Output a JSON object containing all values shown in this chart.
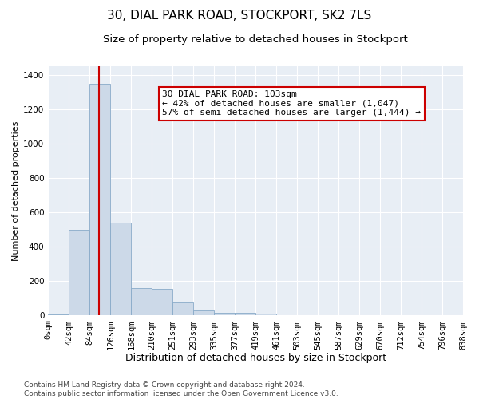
{
  "title1": "30, DIAL PARK ROAD, STOCKPORT, SK2 7LS",
  "title2": "Size of property relative to detached houses in Stockport",
  "xlabel": "Distribution of detached houses by size in Stockport",
  "ylabel": "Number of detached properties",
  "bin_labels": [
    "0sqm",
    "42sqm",
    "84sqm",
    "126sqm",
    "168sqm",
    "210sqm",
    "251sqm",
    "293sqm",
    "335sqm",
    "377sqm",
    "419sqm",
    "461sqm",
    "503sqm",
    "545sqm",
    "587sqm",
    "629sqm",
    "670sqm",
    "712sqm",
    "754sqm",
    "796sqm",
    "838sqm"
  ],
  "bar_values": [
    5,
    500,
    1350,
    540,
    160,
    155,
    75,
    30,
    18,
    14,
    12,
    0,
    0,
    0,
    0,
    0,
    0,
    0,
    0,
    0
  ],
  "bar_color": "#ccd9e8",
  "bar_edgecolor": "#88aac8",
  "vline_color": "#cc0000",
  "annotation_text": "30 DIAL PARK ROAD: 103sqm\n← 42% of detached houses are smaller (1,047)\n57% of semi-detached houses are larger (1,444) →",
  "annotation_box_facecolor": "#ffffff",
  "annotation_box_edgecolor": "#cc0000",
  "ylim": [
    0,
    1450
  ],
  "yticks": [
    0,
    200,
    400,
    600,
    800,
    1000,
    1200,
    1400
  ],
  "background_color": "#e8eef5",
  "grid_color": "#ffffff",
  "footer_text": "Contains HM Land Registry data © Crown copyright and database right 2024.\nContains public sector information licensed under the Open Government Licence v3.0.",
  "title1_fontsize": 11,
  "title2_fontsize": 9.5,
  "xlabel_fontsize": 9,
  "ylabel_fontsize": 8,
  "tick_fontsize": 7.5,
  "annotation_fontsize": 8,
  "footer_fontsize": 6.5
}
